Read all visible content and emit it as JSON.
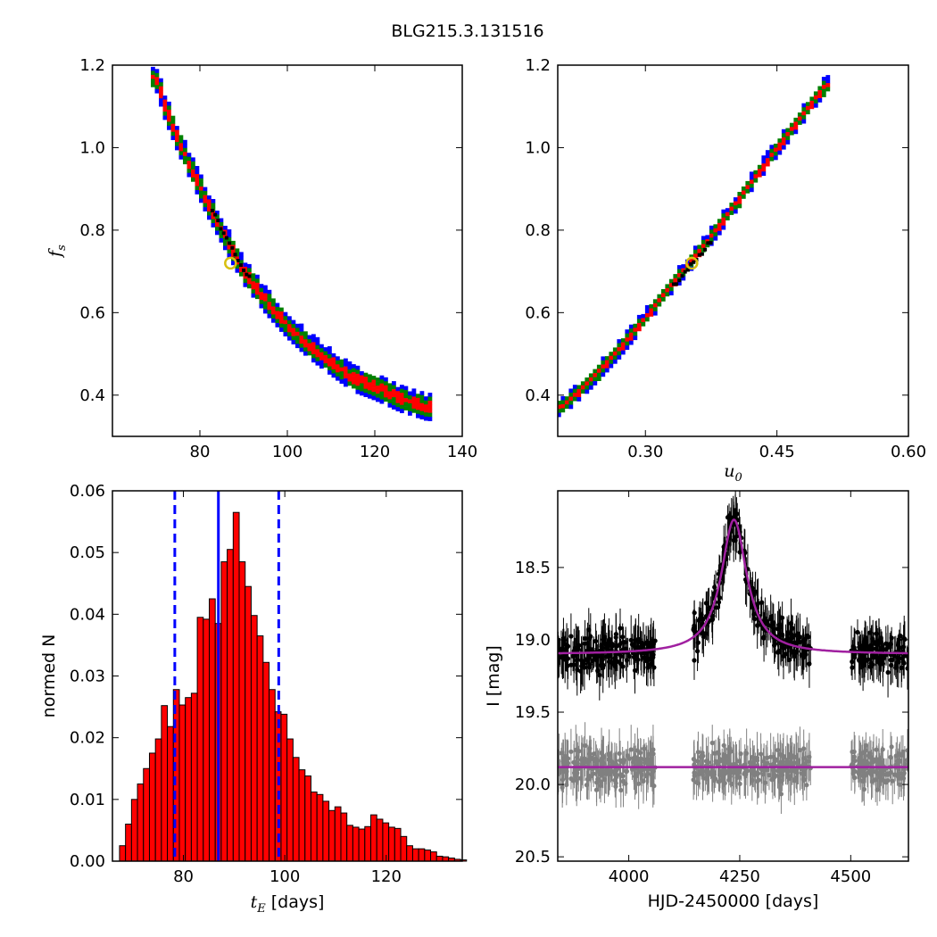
{
  "figure_title": "BLG215.3.131516",
  "chart_data": [
    {
      "panel": "top-left",
      "type": "heatmap",
      "x_range": [
        60,
        140
      ],
      "y_range": [
        0.3,
        1.2
      ],
      "x_ticks": [
        80,
        100,
        120,
        140
      ],
      "y_ticks": [
        0.4,
        0.6,
        0.8,
        1.0,
        1.2
      ],
      "x_tick_labels": [
        "80",
        "100",
        "120",
        "140"
      ],
      "y_tick_labels": [
        "0.4",
        "0.6",
        "0.8",
        "1.0",
        "1.2"
      ],
      "xlabel": "",
      "ylabel": "f_s",
      "ylabel_parts": {
        "base": "f",
        "sub": "s"
      },
      "colors": {
        "outer": "#0000ff",
        "middle": "#008000",
        "inner": "#ff0000",
        "core": "#000000"
      },
      "ridge": [
        [
          70,
          1.17
        ],
        [
          72,
          1.1
        ],
        [
          75,
          1.02
        ],
        [
          78,
          0.95
        ],
        [
          82,
          0.86
        ],
        [
          86,
          0.78
        ],
        [
          90,
          0.7
        ],
        [
          95,
          0.63
        ],
        [
          100,
          0.57
        ],
        [
          105,
          0.52
        ],
        [
          110,
          0.48
        ],
        [
          115,
          0.44
        ],
        [
          120,
          0.42
        ],
        [
          126,
          0.39
        ],
        [
          132,
          0.37
        ]
      ],
      "best_fit": {
        "x": 87,
        "y": 0.72
      }
    },
    {
      "panel": "top-right",
      "type": "heatmap",
      "x_range": [
        0.2,
        0.6
      ],
      "y_range": [
        0.3,
        1.2
      ],
      "x_ticks": [
        0.3,
        0.45,
        0.6
      ],
      "y_ticks": [
        0.4,
        0.6,
        0.8,
        1.0,
        1.2
      ],
      "x_tick_labels": [
        "0.30",
        "0.45",
        "0.60"
      ],
      "y_tick_labels": [
        "0.4",
        "0.6",
        "0.8",
        "1.0",
        "1.2"
      ],
      "xlabel": "u_0",
      "xlabel_parts": {
        "base": "u",
        "sub": "0"
      },
      "ylabel": "",
      "colors": {
        "outer": "#0000ff",
        "middle": "#008000",
        "inner": "#ff0000",
        "core": "#000000"
      },
      "ridge": [
        [
          0.205,
          0.37
        ],
        [
          0.235,
          0.43
        ],
        [
          0.27,
          0.51
        ],
        [
          0.305,
          0.6
        ],
        [
          0.335,
          0.68
        ],
        [
          0.37,
          0.77
        ],
        [
          0.405,
          0.87
        ],
        [
          0.44,
          0.97
        ],
        [
          0.48,
          1.08
        ],
        [
          0.505,
          1.15
        ]
      ],
      "best_fit": {
        "x": 0.353,
        "y": 0.72
      }
    },
    {
      "panel": "bottom-left",
      "type": "bar",
      "x_range": [
        66,
        135
      ],
      "y_range": [
        0,
        0.06
      ],
      "x_ticks": [
        80,
        100,
        120
      ],
      "y_ticks": [
        0,
        0.01,
        0.02,
        0.03,
        0.04,
        0.05,
        0.06
      ],
      "x_tick_labels": [
        "80",
        "100",
        "120"
      ],
      "y_tick_labels": [
        "0.00",
        "0.01",
        "0.02",
        "0.03",
        "0.04",
        "0.05",
        "0.06"
      ],
      "xlabel": "t_E [days]",
      "xlabel_parts": {
        "base": "t",
        "sub": "E",
        "rest": " [days]"
      },
      "ylabel": "normed N",
      "bin_start": 67.4,
      "bin_width": 1.18,
      "bar_color": "#ff0000",
      "values": [
        0.0025,
        0.006,
        0.01,
        0.0125,
        0.015,
        0.0175,
        0.0198,
        0.0252,
        0.0218,
        0.0278,
        0.0253,
        0.0265,
        0.0272,
        0.0395,
        0.0392,
        0.0425,
        0.0385,
        0.0485,
        0.0505,
        0.0565,
        0.0485,
        0.0445,
        0.0398,
        0.0365,
        0.0322,
        0.0278,
        0.0242,
        0.0238,
        0.0198,
        0.0168,
        0.0148,
        0.0138,
        0.0112,
        0.0108,
        0.0097,
        0.0082,
        0.0088,
        0.0078,
        0.0058,
        0.0055,
        0.0052,
        0.0056,
        0.0075,
        0.0068,
        0.0062,
        0.0055,
        0.0053,
        0.004,
        0.0025,
        0.002,
        0.002,
        0.0018,
        0.0015,
        0.0008,
        0.0007,
        0.0005,
        0.0003,
        0.0002
      ],
      "median_line": 86.9,
      "ci_lines": [
        78.3,
        98.8
      ],
      "line_color": "#0000ff"
    },
    {
      "panel": "bottom-right",
      "type": "scatter",
      "x_range": [
        3840,
        4630
      ],
      "y_range": [
        20.53,
        17.97
      ],
      "y_inverted": true,
      "x_ticks": [
        4000,
        4250,
        4500
      ],
      "y_ticks": [
        18.5,
        19.0,
        19.5,
        20.0,
        20.5
      ],
      "x_tick_labels": [
        "4000",
        "4250",
        "4500"
      ],
      "y_tick_labels": [
        "18.5",
        "19.0",
        "19.5",
        "20.0",
        "20.5"
      ],
      "xlabel": "HJD-2450000 [days]",
      "ylabel": "I [mag]",
      "model": {
        "t0": 4237,
        "baseline": 19.1,
        "peak": 18.17,
        "width": 35,
        "color": "#a020a0"
      },
      "residual_baseline": 19.88,
      "observed_color": "#000000",
      "residual_color": "#808080",
      "observing_seasons": [
        [
          3840,
          4060
        ],
        [
          4145,
          4410
        ],
        [
          4500,
          4630
        ]
      ]
    }
  ]
}
